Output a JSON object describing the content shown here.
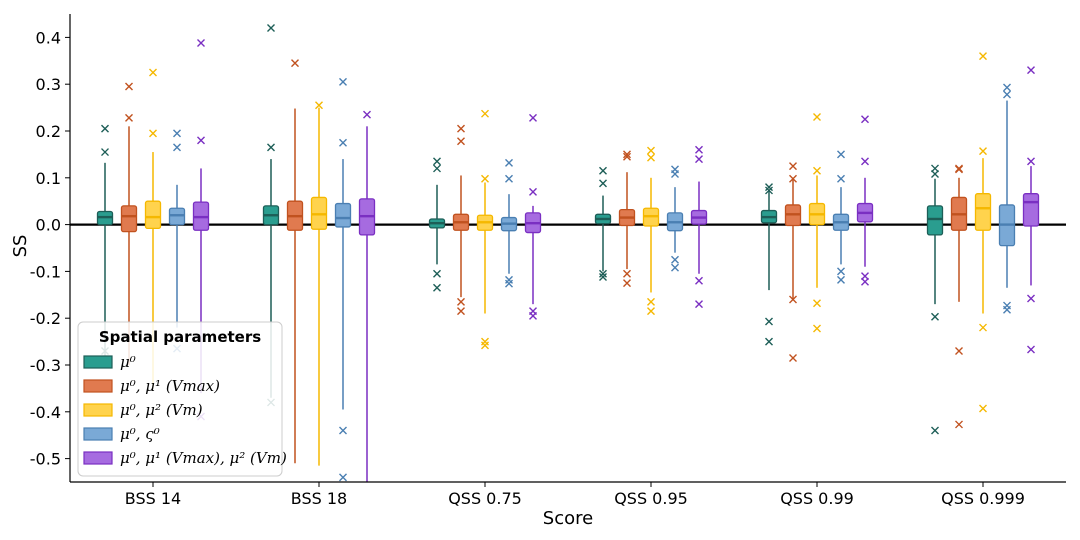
{
  "chart_data": {
    "type": "box",
    "xlabel": "Score",
    "ylabel": "SS",
    "ylim": [
      -0.55,
      0.45
    ],
    "yticks": [
      0.4,
      0.3,
      0.2,
      0.1,
      0.0,
      -0.1,
      -0.2,
      -0.3,
      -0.4,
      -0.5
    ],
    "ytick_labels": [
      "0.4",
      "0.3",
      "0.2",
      "0.1",
      "0.0",
      "-0.1",
      "-0.2",
      "-0.3",
      "-0.4",
      "-0.5"
    ],
    "categories": [
      "BSS 14",
      "BSS 18",
      "QSS 0.75",
      "QSS 0.95",
      "QSS 0.99",
      "QSS 0.999"
    ],
    "zero_line": true,
    "legend": {
      "title": "Spatial parameters",
      "placement": "lower-left"
    },
    "series": [
      {
        "name": "μ⁰",
        "color": "#2a9d8f",
        "edge": "#1d5e57",
        "boxes": [
          {
            "q1": 0.0,
            "med": 0.016,
            "q3": 0.028,
            "wlo": -0.285,
            "whi": 0.132,
            "fliers": [
              0.205,
              0.155,
              -0.27
            ]
          },
          {
            "q1": 0.0,
            "med": 0.02,
            "q3": 0.04,
            "wlo": -0.37,
            "whi": 0.14,
            "fliers": [
              0.42,
              0.165,
              -0.38
            ]
          },
          {
            "q1": -0.007,
            "med": 0.003,
            "q3": 0.012,
            "wlo": -0.085,
            "whi": 0.085,
            "fliers": [
              0.135,
              0.12,
              -0.105,
              -0.135
            ]
          },
          {
            "q1": 0.002,
            "med": 0.012,
            "q3": 0.022,
            "wlo": -0.1,
            "whi": 0.062,
            "fliers": [
              0.115,
              0.088,
              -0.105,
              -0.112
            ]
          },
          {
            "q1": 0.004,
            "med": 0.016,
            "q3": 0.03,
            "wlo": -0.14,
            "whi": 0.072,
            "fliers": [
              0.08,
              0.073,
              -0.207,
              -0.25
            ]
          },
          {
            "q1": -0.022,
            "med": 0.012,
            "q3": 0.04,
            "wlo": -0.17,
            "whi": 0.098,
            "fliers": [
              0.12,
              0.108,
              -0.197,
              -0.44
            ]
          }
        ]
      },
      {
        "name": "μ⁰, μ¹ (Vmax)",
        "color": "#e07a4f",
        "edge": "#c1521f",
        "boxes": [
          {
            "q1": -0.015,
            "med": 0.018,
            "q3": 0.04,
            "wlo": -0.3,
            "whi": 0.21,
            "fliers": [
              0.295,
              0.228
            ]
          },
          {
            "q1": -0.012,
            "med": 0.018,
            "q3": 0.05,
            "wlo": -0.51,
            "whi": 0.248,
            "fliers": [
              0.345
            ]
          },
          {
            "q1": -0.012,
            "med": 0.005,
            "q3": 0.022,
            "wlo": -0.155,
            "whi": 0.105,
            "fliers": [
              0.205,
              0.178,
              -0.165,
              -0.185
            ]
          },
          {
            "q1": -0.002,
            "med": 0.015,
            "q3": 0.032,
            "wlo": -0.095,
            "whi": 0.112,
            "fliers": [
              0.15,
              0.145,
              -0.105,
              -0.125
            ]
          },
          {
            "q1": -0.002,
            "med": 0.022,
            "q3": 0.042,
            "wlo": -0.158,
            "whi": 0.1,
            "fliers": [
              0.125,
              0.098,
              -0.16,
              -0.285
            ]
          },
          {
            "q1": -0.012,
            "med": 0.022,
            "q3": 0.058,
            "wlo": -0.165,
            "whi": 0.1,
            "fliers": [
              0.12,
              0.118,
              -0.27,
              -0.427
            ]
          }
        ]
      },
      {
        "name": "μ⁰, μ² (Vm)",
        "color": "#ffd34d",
        "edge": "#f5b800",
        "boxes": [
          {
            "q1": -0.008,
            "med": 0.016,
            "q3": 0.05,
            "wlo": -0.35,
            "whi": 0.155,
            "fliers": [
              0.325,
              0.195
            ]
          },
          {
            "q1": -0.01,
            "med": 0.022,
            "q3": 0.058,
            "wlo": -0.515,
            "whi": 0.25,
            "fliers": [
              0.255
            ]
          },
          {
            "q1": -0.012,
            "med": 0.005,
            "q3": 0.02,
            "wlo": -0.19,
            "whi": 0.09,
            "fliers": [
              0.237,
              0.098,
              -0.25,
              -0.258
            ]
          },
          {
            "q1": -0.003,
            "med": 0.018,
            "q3": 0.035,
            "wlo": -0.145,
            "whi": 0.1,
            "fliers": [
              0.158,
              0.143,
              -0.165,
              -0.185
            ]
          },
          {
            "q1": 0.0,
            "med": 0.022,
            "q3": 0.045,
            "wlo": -0.135,
            "whi": 0.105,
            "fliers": [
              0.23,
              0.115,
              -0.168,
              -0.222
            ]
          },
          {
            "q1": -0.012,
            "med": 0.035,
            "q3": 0.066,
            "wlo": -0.19,
            "whi": 0.142,
            "fliers": [
              0.36,
              0.157,
              -0.22,
              -0.393
            ]
          }
        ]
      },
      {
        "name": "μ⁰, ς⁰",
        "color": "#7aa9d6",
        "edge": "#4a7fb2",
        "boxes": [
          {
            "q1": 0.0,
            "med": 0.02,
            "q3": 0.035,
            "wlo": -0.22,
            "whi": 0.085,
            "fliers": [
              0.195,
              0.165,
              -0.265
            ]
          },
          {
            "q1": -0.005,
            "med": 0.014,
            "q3": 0.045,
            "wlo": -0.395,
            "whi": 0.14,
            "fliers": [
              0.305,
              0.175,
              -0.44,
              -0.54
            ]
          },
          {
            "q1": -0.013,
            "med": 0.002,
            "q3": 0.015,
            "wlo": -0.105,
            "whi": 0.065,
            "fliers": [
              0.132,
              0.098,
              -0.118,
              -0.126
            ]
          },
          {
            "q1": -0.013,
            "med": 0.005,
            "q3": 0.025,
            "wlo": -0.06,
            "whi": 0.08,
            "fliers": [
              0.118,
              0.108,
              -0.075,
              -0.092
            ]
          },
          {
            "q1": -0.012,
            "med": 0.005,
            "q3": 0.022,
            "wlo": -0.085,
            "whi": 0.08,
            "fliers": [
              0.15,
              0.098,
              -0.1,
              -0.118
            ]
          },
          {
            "q1": -0.045,
            "med": 0.0,
            "q3": 0.042,
            "wlo": -0.135,
            "whi": 0.265,
            "fliers": [
              0.293,
              0.278,
              -0.173,
              -0.182
            ]
          }
        ]
      },
      {
        "name": "μ⁰, μ¹ (Vmax), μ² (Vm)",
        "color": "#a66be0",
        "edge": "#7a2fc2",
        "boxes": [
          {
            "q1": -0.012,
            "med": 0.016,
            "q3": 0.048,
            "wlo": -0.36,
            "whi": 0.12,
            "fliers": [
              0.388,
              0.18,
              -0.41
            ]
          },
          {
            "q1": -0.022,
            "med": 0.018,
            "q3": 0.055,
            "wlo": -0.55,
            "whi": 0.21,
            "fliers": [
              0.235
            ]
          },
          {
            "q1": -0.017,
            "med": 0.003,
            "q3": 0.025,
            "wlo": -0.17,
            "whi": 0.04,
            "fliers": [
              0.228,
              0.07,
              -0.185,
              -0.195
            ]
          },
          {
            "q1": 0.001,
            "med": 0.015,
            "q3": 0.03,
            "wlo": -0.105,
            "whi": 0.092,
            "fliers": [
              0.16,
              0.14,
              -0.12,
              -0.17
            ]
          },
          {
            "q1": 0.006,
            "med": 0.025,
            "q3": 0.045,
            "wlo": -0.09,
            "whi": 0.1,
            "fliers": [
              0.225,
              0.135,
              -0.11,
              -0.122
            ]
          },
          {
            "q1": -0.003,
            "med": 0.048,
            "q3": 0.066,
            "wlo": -0.13,
            "whi": 0.125,
            "fliers": [
              0.33,
              0.135,
              -0.158,
              -0.267
            ]
          }
        ]
      }
    ]
  }
}
